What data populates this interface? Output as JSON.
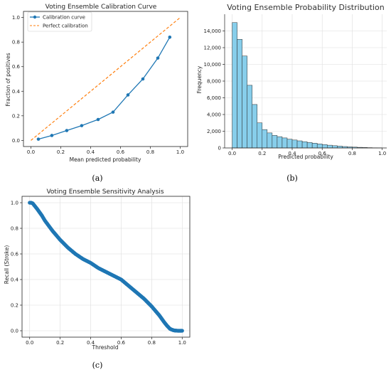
{
  "panel_labels": [
    "(a)",
    "(b)",
    "(c)"
  ],
  "colors": {
    "blue": "#1f77b4",
    "orange": "#ff7f0e",
    "hist_fill": "#87CEEB",
    "hist_edge": "#2b2b2b",
    "grid": "#dddddd"
  },
  "chart_data": [
    {
      "id": "a",
      "type": "line",
      "title": "Voting Ensemble Calibration Curve",
      "xlabel": "Mean predicted probability",
      "ylabel": "Fraction of positives",
      "xlim": [
        -0.05,
        1.05
      ],
      "ylim": [
        -0.05,
        1.05
      ],
      "xticks": [
        0.0,
        0.2,
        0.4,
        0.6,
        0.8,
        1.0
      ],
      "yticks": [
        0.0,
        0.2,
        0.4,
        0.6,
        0.8,
        1.0
      ],
      "xtick_labels": [
        "0.0",
        "0.2",
        "0.4",
        "0.6",
        "0.8",
        "1.0"
      ],
      "ytick_labels": [
        "0.0",
        "0.2",
        "0.4",
        "0.6",
        "0.8",
        "1.0"
      ],
      "grid": false,
      "legend_position": "top-left",
      "series": [
        {
          "name": "Calibration curve",
          "style": "line-markers",
          "color": "#1f77b4",
          "x": [
            0.05,
            0.14,
            0.24,
            0.34,
            0.45,
            0.55,
            0.65,
            0.75,
            0.85,
            0.93
          ],
          "y": [
            0.01,
            0.04,
            0.08,
            0.12,
            0.17,
            0.23,
            0.37,
            0.5,
            0.67,
            0.84
          ]
        },
        {
          "name": "Perfect calibration",
          "style": "dashed",
          "color": "#ff7f0e",
          "x": [
            0.0,
            1.0
          ],
          "y": [
            0.0,
            1.0
          ]
        }
      ]
    },
    {
      "id": "b",
      "type": "bar",
      "title": "Voting Ensemble Probability Distribution",
      "xlabel": "Predicted probability",
      "ylabel": "Frequency",
      "xlim": [
        -0.05,
        1.03
      ],
      "ylim": [
        0,
        16000
      ],
      "xticks": [
        0.0,
        0.2,
        0.4,
        0.6,
        0.8,
        1.0
      ],
      "yticks": [
        0,
        2000,
        4000,
        6000,
        8000,
        10000,
        12000,
        14000
      ],
      "xtick_labels": [
        "0.0",
        "0.2",
        "0.4",
        "0.6",
        "0.8",
        "1.0"
      ],
      "ytick_labels": [
        "0",
        "2,000",
        "4,000",
        "6,000",
        "8,000",
        "10,000",
        "12,000",
        "14,000"
      ],
      "grid": true,
      "bin_edges": [
        0.0,
        0.0333,
        0.0667,
        0.1,
        0.1333,
        0.1667,
        0.2,
        0.2333,
        0.2667,
        0.3,
        0.3333,
        0.3667,
        0.4,
        0.4333,
        0.4667,
        0.5,
        0.5333,
        0.5667,
        0.6,
        0.6333,
        0.6667,
        0.7,
        0.7333,
        0.7667,
        0.8,
        0.8333,
        0.8667,
        0.9,
        0.9333,
        0.9667,
        1.0
      ],
      "values": [
        15000,
        13000,
        11000,
        7500,
        5200,
        3000,
        2200,
        1800,
        1500,
        1350,
        1200,
        1050,
        950,
        850,
        750,
        650,
        570,
        480,
        400,
        330,
        270,
        220,
        170,
        130,
        100,
        75,
        55,
        35,
        20,
        10
      ]
    },
    {
      "id": "c",
      "type": "scatter",
      "title": "Voting Ensemble Sensitivity Analysis",
      "xlabel": "Threshold",
      "ylabel": "Recall (Stroke)",
      "xlim": [
        -0.05,
        1.05
      ],
      "ylim": [
        -0.05,
        1.05
      ],
      "xticks": [
        0.0,
        0.2,
        0.4,
        0.6,
        0.8,
        1.0
      ],
      "yticks": [
        0.0,
        0.2,
        0.4,
        0.6,
        0.8,
        1.0
      ],
      "xtick_labels": [
        "0.0",
        "0.2",
        "0.4",
        "0.6",
        "0.8",
        "1.0"
      ],
      "ytick_labels": [
        "0.0",
        "0.2",
        "0.4",
        "0.6",
        "0.8",
        "1.0"
      ],
      "grid": true,
      "curve_x": [
        0.0,
        0.01,
        0.02,
        0.03,
        0.05,
        0.08,
        0.1,
        0.15,
        0.2,
        0.25,
        0.3,
        0.35,
        0.4,
        0.45,
        0.5,
        0.55,
        0.6,
        0.65,
        0.7,
        0.75,
        0.8,
        0.85,
        0.88,
        0.9,
        0.92,
        0.94,
        0.95,
        0.97,
        1.0
      ],
      "curve_y": [
        1.0,
        1.0,
        0.995,
        0.98,
        0.95,
        0.9,
        0.86,
        0.78,
        0.71,
        0.65,
        0.6,
        0.56,
        0.53,
        0.49,
        0.46,
        0.43,
        0.4,
        0.35,
        0.3,
        0.25,
        0.19,
        0.12,
        0.07,
        0.04,
        0.015,
        0.005,
        0.002,
        0.0,
        0.0
      ]
    }
  ]
}
